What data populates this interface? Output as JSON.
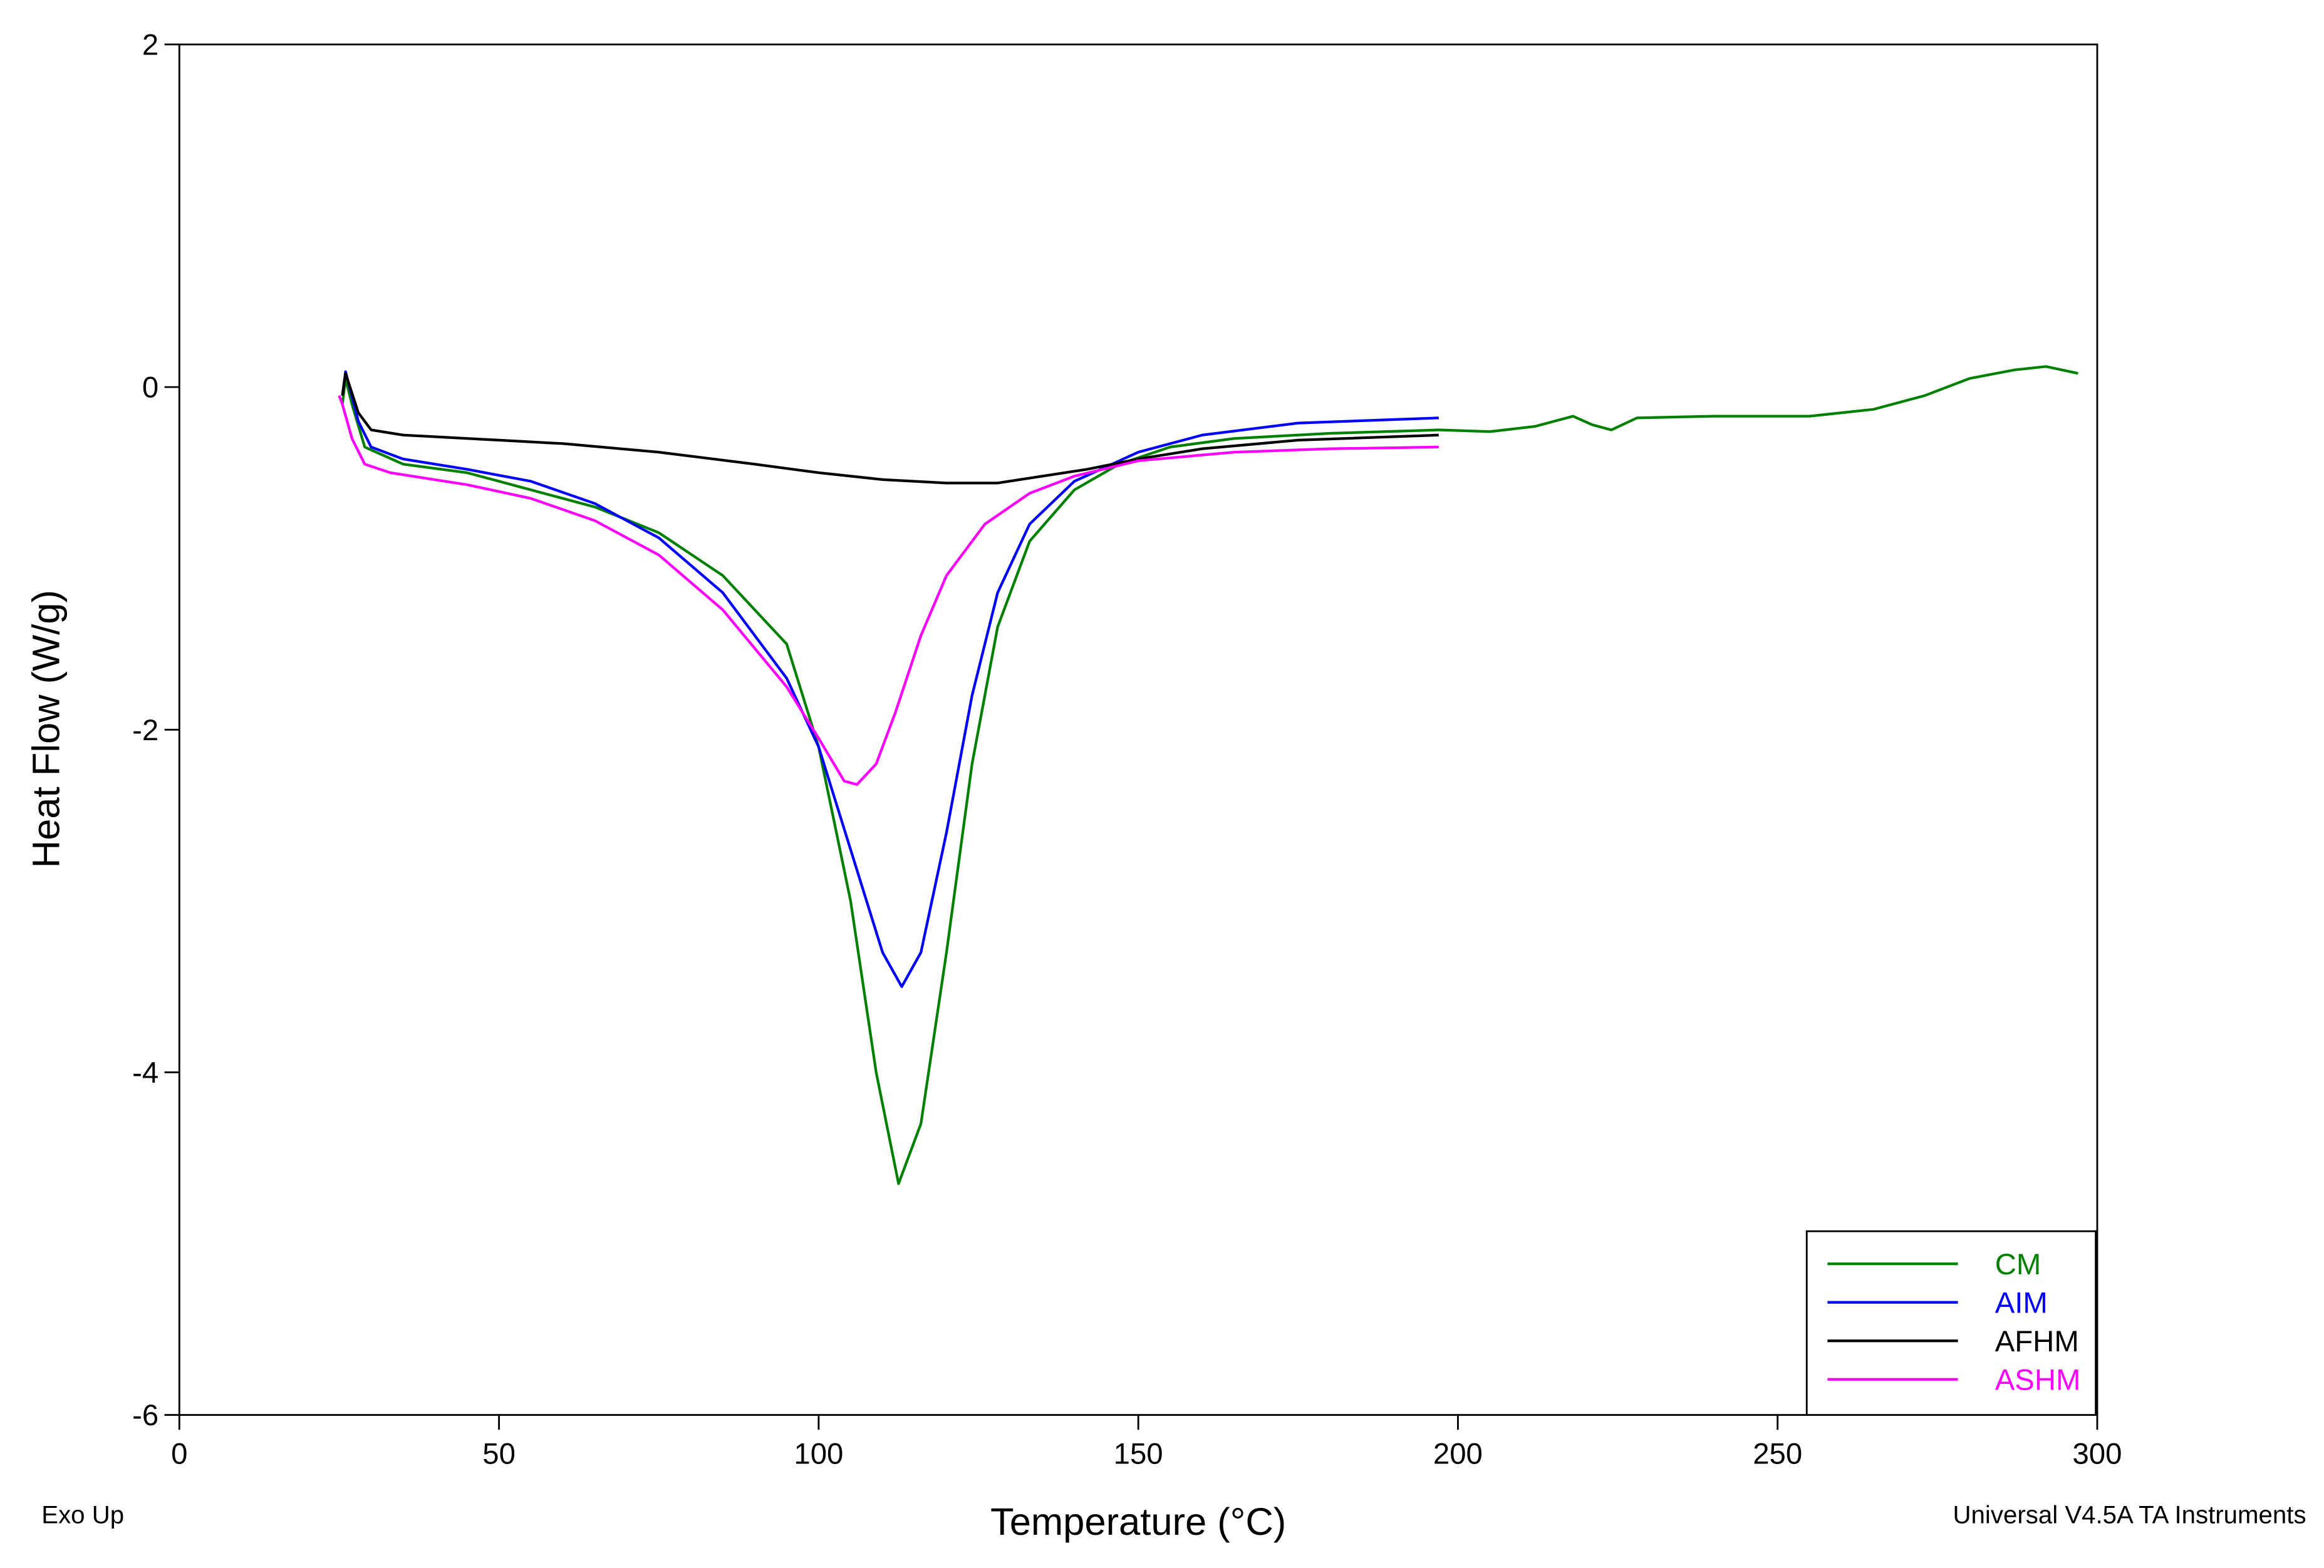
{
  "chart_data": {
    "type": "line",
    "xlabel": "Temperature (°C)",
    "ylabel": "Heat Flow (W/g)",
    "xlim": [
      0,
      300
    ],
    "ylim": [
      -6,
      2
    ],
    "xticks": [
      0,
      50,
      100,
      150,
      200,
      250,
      300
    ],
    "yticks": [
      -6,
      -4,
      -2,
      0,
      2
    ],
    "legend_position": "lower right",
    "footer_left": "Exo Up",
    "footer_right": "Universal V4.5A TA Instruments",
    "series": [
      {
        "name": "CM",
        "color": "#008000",
        "x": [
          25.5,
          26,
          27,
          29,
          35,
          45,
          50,
          55,
          65,
          75,
          85,
          95,
          100,
          105,
          109,
          112.5,
          116,
          120,
          124,
          128,
          133,
          140,
          147,
          155,
          165,
          180,
          197,
          205,
          212,
          218,
          221,
          224,
          228,
          240,
          255,
          265,
          273,
          280,
          287,
          292,
          297
        ],
        "values": [
          -0.1,
          0.05,
          -0.1,
          -0.35,
          -0.45,
          -0.5,
          -0.55,
          -0.6,
          -0.7,
          -0.85,
          -1.1,
          -1.5,
          -2.1,
          -3.0,
          -4.0,
          -4.65,
          -4.3,
          -3.3,
          -2.2,
          -1.4,
          -0.9,
          -0.6,
          -0.45,
          -0.35,
          -0.3,
          -0.27,
          -0.25,
          -0.26,
          -0.23,
          -0.17,
          -0.22,
          -0.25,
          -0.18,
          -0.17,
          -0.17,
          -0.13,
          -0.05,
          0.05,
          0.1,
          0.12,
          0.08
        ]
      },
      {
        "name": "AIM",
        "color": "#0000ff",
        "x": [
          25.5,
          26,
          28,
          30,
          35,
          45,
          55,
          65,
          75,
          85,
          95,
          100,
          105,
          110,
          113,
          116,
          120,
          124,
          128,
          133,
          140,
          150,
          160,
          175,
          197
        ],
        "values": [
          -0.05,
          0.09,
          -0.2,
          -0.35,
          -0.42,
          -0.48,
          -0.55,
          -0.68,
          -0.88,
          -1.2,
          -1.7,
          -2.1,
          -2.7,
          -3.3,
          -3.5,
          -3.3,
          -2.6,
          -1.8,
          -1.2,
          -0.8,
          -0.55,
          -0.38,
          -0.28,
          -0.21,
          -0.18
        ]
      },
      {
        "name": "AFHM",
        "color": "#000000",
        "x": [
          25.5,
          26,
          28,
          30,
          35,
          50,
          60,
          75,
          90,
          100,
          110,
          120,
          128,
          135,
          142,
          150,
          160,
          175,
          197
        ],
        "values": [
          -0.05,
          0.08,
          -0.15,
          -0.25,
          -0.28,
          -0.31,
          -0.33,
          -0.38,
          -0.45,
          -0.5,
          -0.54,
          -0.56,
          -0.56,
          -0.52,
          -0.48,
          -0.42,
          -0.36,
          -0.31,
          -0.28
        ]
      },
      {
        "name": "ASHM",
        "color": "#ff00ff",
        "x": [
          25,
          25.5,
          27,
          29,
          33,
          45,
          55,
          65,
          75,
          85,
          95,
          100,
          104,
          106,
          109,
          112,
          116,
          120,
          126,
          133,
          140,
          150,
          165,
          180,
          197
        ],
        "values": [
          -0.05,
          -0.1,
          -0.3,
          -0.45,
          -0.5,
          -0.57,
          -0.65,
          -0.78,
          -0.98,
          -1.3,
          -1.75,
          -2.05,
          -2.3,
          -2.32,
          -2.2,
          -1.9,
          -1.45,
          -1.1,
          -0.8,
          -0.62,
          -0.52,
          -0.43,
          -0.38,
          -0.36,
          -0.35
        ]
      }
    ]
  }
}
